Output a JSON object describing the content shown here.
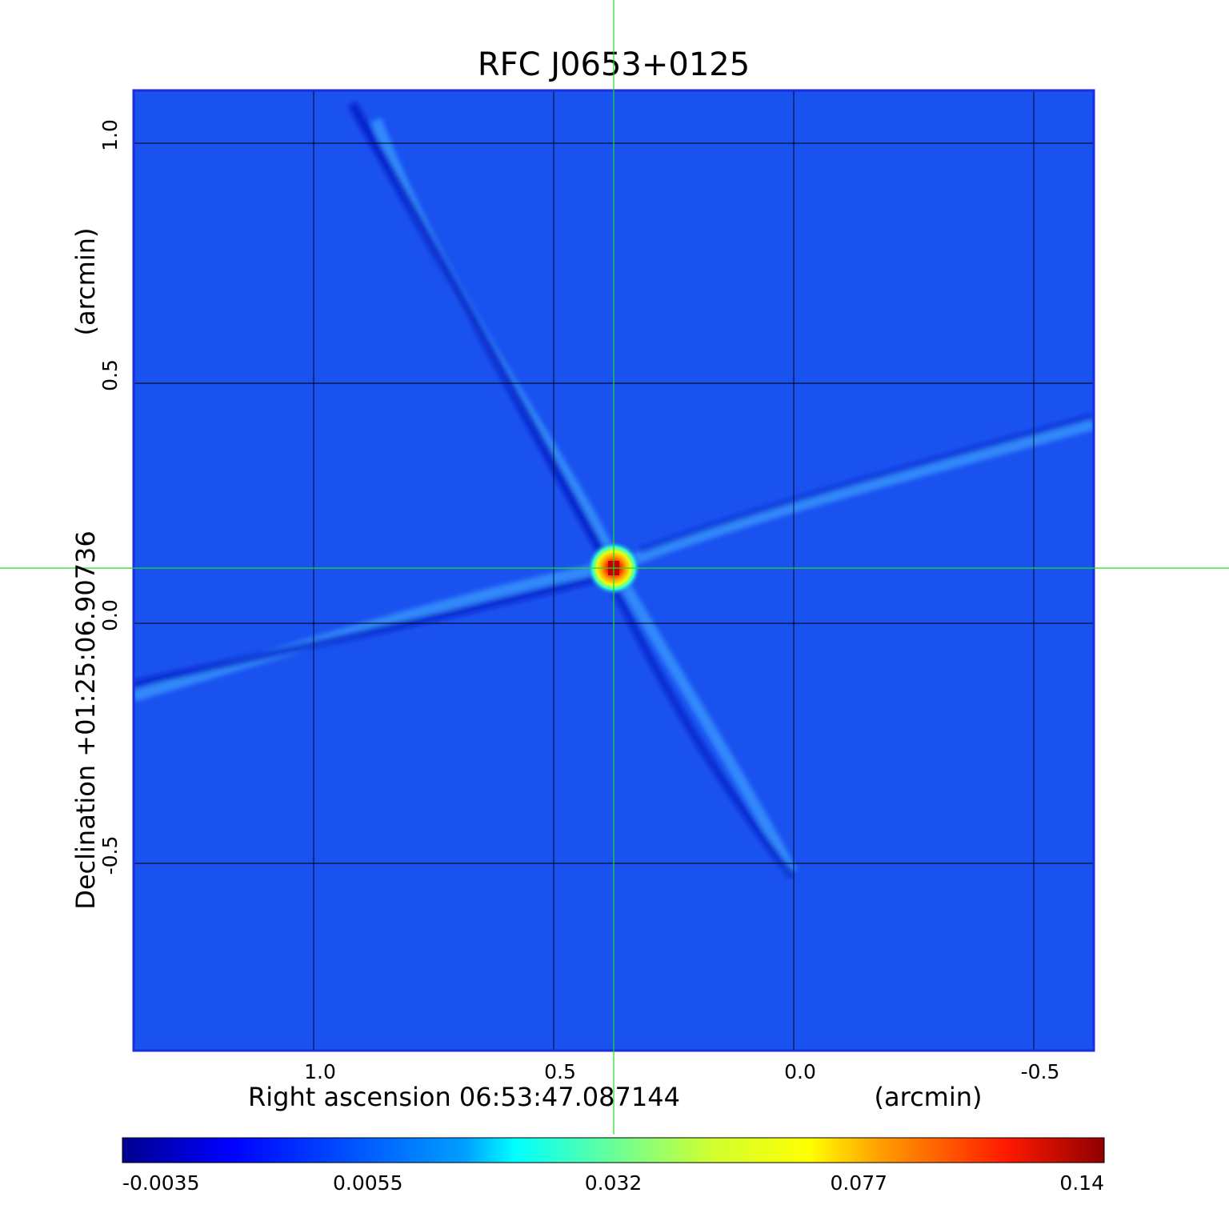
{
  "chart_data": {
    "type": "heatmap",
    "title": "RFC J0653+0125",
    "title_color": "#0a0adc",
    "xlabel": "Right ascension  06:53:47.087144",
    "xlabel_unit": "(arcmin)",
    "ylabel": "Declination  +01:25:06.90736",
    "ylabel_unit": "(arcmin)",
    "x_ticks": [
      {
        "value": 1.0,
        "label": "1.0"
      },
      {
        "value": 0.5,
        "label": "0.5"
      },
      {
        "value": 0.0,
        "label": "0.0"
      },
      {
        "value": -0.5,
        "label": "-0.5"
      }
    ],
    "y_ticks": [
      {
        "value": 1.0,
        "label": "1.0"
      },
      {
        "value": 0.5,
        "label": "0.5"
      },
      {
        "value": 0.0,
        "label": "0.0"
      },
      {
        "value": -0.5,
        "label": "-0.5"
      }
    ],
    "xlim": [
      1.375,
      -0.625
    ],
    "ylim": [
      -0.89,
      1.11
    ],
    "x_reversed": true,
    "grid": true,
    "crosshair": {
      "x": 0.375,
      "y": 0.115,
      "color": "#22dd22"
    },
    "peak": {
      "x": 0.375,
      "y": 0.115
    },
    "colormap": "jet",
    "colorbar": {
      "placement": "bottom",
      "tick_labels": [
        "-0.0035",
        "0.0055",
        "0.032",
        "0.077",
        "0.14"
      ],
      "min": -0.0035,
      "max": 0.14
    },
    "background_color": "#1a52f0",
    "frame_color": "#1a2ee0"
  }
}
